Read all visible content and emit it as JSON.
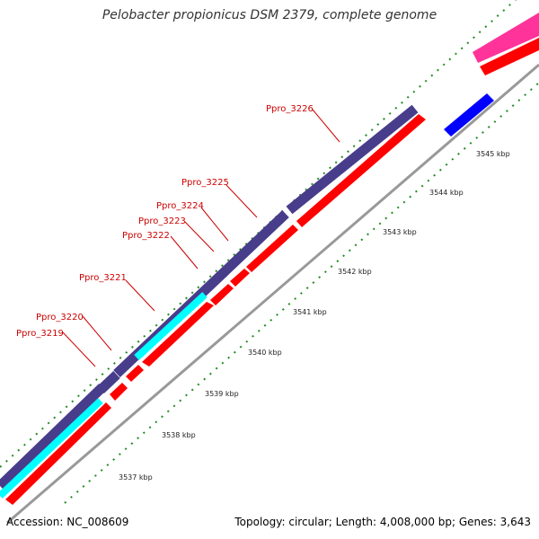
{
  "title": "Pelobacter propionicus DSM 2379, complete genome",
  "footer": {
    "accession": "Accession: NC_008609",
    "summary": "Topology: circular; Length: 4,008,000 bp; Genes: 3,643"
  },
  "colors": {
    "cds_forward": "#ff0000",
    "gene_track": "#483d8b",
    "cyan_feature": "#00ffff",
    "blue_feature": "#0000ff",
    "pink_feature": "#ff3399",
    "backbone": "#999999",
    "tick": "#228b22",
    "label": "#cc0000"
  },
  "gene_labels": [
    "Ppro_3219",
    "Ppro_3220",
    "Ppro_3221",
    "Ppro_3222",
    "Ppro_3223",
    "Ppro_3224",
    "Ppro_3225",
    "Ppro_3226"
  ],
  "kbp_labels": [
    "3537 kbp",
    "3538 kbp",
    "3539 kbp",
    "3540 kbp",
    "3541 kbp",
    "3542 kbp",
    "3543 kbp",
    "3544 kbp",
    "3545 kbp"
  ]
}
